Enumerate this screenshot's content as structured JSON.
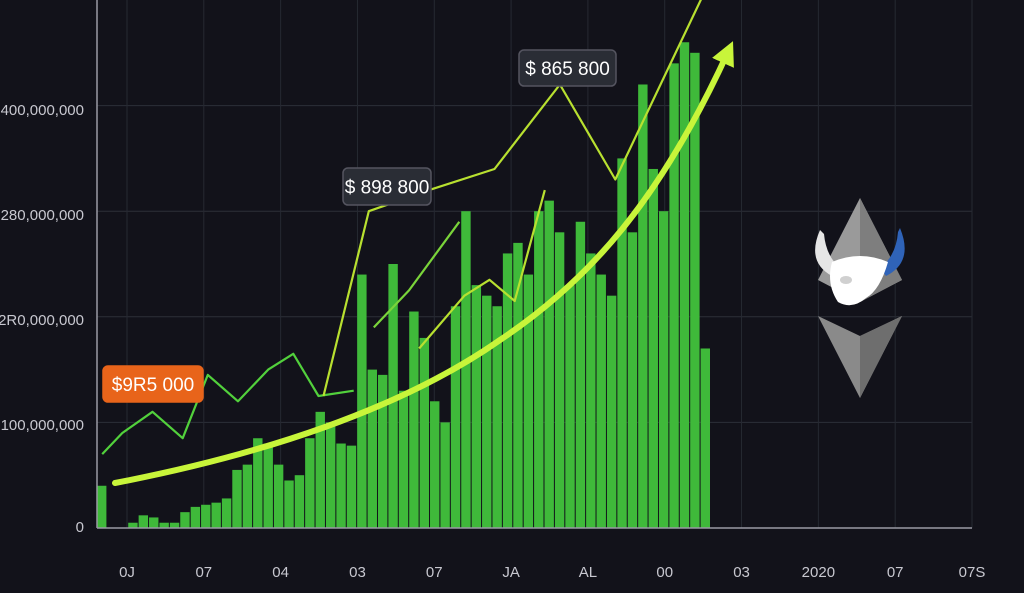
{
  "chart_data": {
    "type": "bar",
    "y_tick_labels": [
      "0",
      "100,000,000",
      "2R0,000,000",
      "280,000,000",
      "400,000,000"
    ],
    "x_tick_labels": [
      "0J",
      "07",
      "04",
      "03",
      "07",
      "JA",
      "AL",
      "00",
      "03",
      "2020",
      "07",
      "07S"
    ],
    "ylim": [
      0,
      500
    ],
    "grid": true,
    "bar_color": "#3fb93a",
    "bar_values": [
      40,
      0,
      0,
      5,
      12,
      10,
      5,
      5,
      15,
      20,
      22,
      24,
      28,
      55,
      60,
      85,
      80,
      60,
      45,
      50,
      85,
      110,
      100,
      80,
      78,
      240,
      150,
      145,
      250,
      130,
      205,
      180,
      120,
      100,
      210,
      300,
      230,
      220,
      210,
      260,
      270,
      240,
      300,
      310,
      280,
      230,
      290,
      260,
      240,
      220,
      350,
      280,
      420,
      340,
      300,
      440,
      460,
      450,
      170
    ],
    "line_series": [
      [
        [
          0,
          70
        ],
        [
          4,
          90
        ],
        [
          10,
          110
        ],
        [
          16,
          85
        ],
        [
          21,
          145
        ],
        [
          27,
          120
        ],
        [
          33,
          150
        ],
        [
          38,
          165
        ],
        [
          43,
          125
        ],
        [
          50,
          130
        ]
      ],
      [
        [
          44,
          125
        ],
        [
          53,
          300
        ],
        [
          65,
          320
        ],
        [
          78,
          340
        ],
        [
          91,
          420
        ],
        [
          102,
          330
        ],
        [
          120,
          510
        ]
      ],
      [
        [
          63,
          170
        ],
        [
          72,
          220
        ],
        [
          77,
          235
        ],
        [
          82,
          215
        ],
        [
          88,
          320
        ]
      ],
      [
        [
          54,
          190
        ],
        [
          61,
          225
        ],
        [
          71,
          290
        ]
      ]
    ],
    "trend_arrow_color": "#c8f53a",
    "callouts": [
      {
        "text": "$9R5 000",
        "border_color": "#e8641a",
        "fill_color": "#e8641a"
      },
      {
        "text": "$ 898 800",
        "border_color": "#555560",
        "fill_color": "#2a2d35"
      },
      {
        "text": "$ 865 800",
        "border_color": "#555560",
        "fill_color": "#2a2d35"
      }
    ],
    "logo": {
      "name": "bull-ethereum-logo",
      "colors": [
        "#9a9a9a",
        "#2f63b8",
        "#ffffff"
      ]
    }
  }
}
